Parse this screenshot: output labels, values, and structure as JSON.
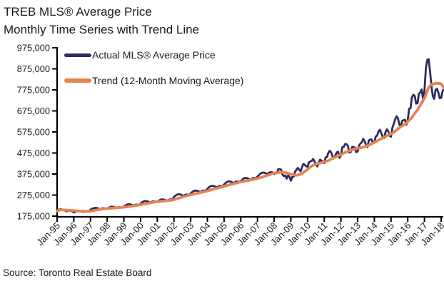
{
  "title": {
    "line1": "TREB MLS® Average Price",
    "line2": "Monthly Time Series with Trend Line"
  },
  "source": "Source: Toronto Real Estate Board",
  "legend": [
    {
      "label": "Actual MLS® Average Price",
      "color": "#2F2A61"
    },
    {
      "label": "Trend (12-Month Moving Average)",
      "color": "#E58450"
    }
  ],
  "colors": {
    "axis": "#000000",
    "text": "#1b1b1b",
    "actual_line": "#2F2A61",
    "trend_line": "#E58450"
  },
  "chart_data": {
    "type": "line",
    "title": "TREB MLS® Average Price — Monthly Time Series with Trend Line",
    "xlabel": "",
    "ylabel": "",
    "x_unit": "month",
    "x_range": [
      "Jan-1995",
      "Mar-2018"
    ],
    "x_tick_labels": [
      "Jan-95",
      "Jan-96",
      "Jan-97",
      "Jan-98",
      "Jan-99",
      "Jan-00",
      "Jan-01",
      "Jan-02",
      "Jan-03",
      "Jan-04",
      "Jan-05",
      "Jan-06",
      "Jan-07",
      "Jan-08",
      "Jan-09",
      "Jan-10",
      "Jan-11",
      "Jan-12",
      "Jan-13",
      "Jan-14",
      "Jan-15",
      "Jan-16",
      "Jan-17",
      "Jan-18"
    ],
    "y_ticks": [
      175000,
      275000,
      375000,
      475000,
      575000,
      675000,
      775000,
      875000,
      975000
    ],
    "ylim": [
      175000,
      975000
    ],
    "grid": false,
    "legend_position": "top-left inside plot",
    "series": [
      {
        "name": "Actual MLS® Average Price",
        "color": "#2F2A61",
        "values": [
          198900,
          205600,
          206600,
          207900,
          203700,
          202900,
          200000,
          197200,
          202500,
          200000,
          199100,
          197600,
          192300,
          194800,
          199100,
          200200,
          199600,
          198500,
          196800,
          194500,
          198000,
          199200,
          199000,
          198800,
          205600,
          209300,
          212100,
          213800,
          214200,
          212600,
          210000,
          207500,
          211300,
          212800,
          212000,
          210500,
          211000,
          214500,
          217600,
          219700,
          219300,
          218000,
          215600,
          213200,
          216800,
          218200,
          217500,
          216000,
          221000,
          225300,
          229000,
          231600,
          231200,
          230000,
          227200,
          224800,
          228500,
          230200,
          229600,
          228300,
          235200,
          240000,
          244000,
          246800,
          246300,
          245000,
          242200,
          239500,
          243500,
          245300,
          244600,
          243400,
          243700,
          248000,
          251800,
          254600,
          254200,
          253200,
          250300,
          248000,
          251500,
          254000,
          254500,
          255000,
          266300,
          271500,
          276000,
          279000,
          278300,
          277000,
          274000,
          271600,
          275800,
          277600,
          277200,
          276500,
          283200,
          288600,
          293400,
          296400,
          296000,
          294800,
          291800,
          289300,
          294000,
          296200,
          296000,
          295700,
          305000,
          310800,
          316000,
          319200,
          318700,
          317300,
          314000,
          311300,
          316200,
          318500,
          318200,
          317600,
          325200,
          331200,
          336800,
          340100,
          339700,
          338200,
          334700,
          331800,
          337000,
          339500,
          339200,
          338500,
          340800,
          347200,
          353000,
          356500,
          356000,
          354400,
          350700,
          347700,
          353200,
          355800,
          355500,
          354800,
          363000,
          369700,
          376000,
          379800,
          382000,
          381200,
          377800,
          374600,
          380200,
          383200,
          383800,
          382800,
          374400,
          382000,
          380300,
          398700,
          398100,
          395900,
          371400,
          364900,
          368500,
          353000,
          368600,
          361400,
          343600,
          361300,
          362100,
          385600,
          395600,
          404000,
          395400,
          387900,
          406900,
          423600,
          418500,
          411900,
          409100,
          431500,
          434700,
          437600,
          446600,
          435000,
          420500,
          411000,
          427300,
          443700,
          438000,
          434000,
          427000,
          454400,
          456100,
          477400,
          485500,
          476400,
          459100,
          451700,
          464400,
          478100,
          480400,
          451400,
          463500,
          502500,
          504100,
          517600,
          516800,
          508600,
          476900,
          479100,
          503700,
          503500,
          500500,
          478700,
          482600,
          510600,
          519900,
          526300,
          542200,
          531400,
          513200,
          503100,
          533800,
          539100,
          538900,
          520400,
          526500,
          553200,
          557700,
          577900,
          585200,
          569000,
          550700,
          546300,
          573700,
          587500,
          577900,
          556600,
          552600,
          596200,
          613900,
          635900,
          649600,
          639200,
          609200,
          602600,
          627400,
          630900,
          632700,
          609100,
          631100,
          685300,
          688000,
          739100,
          751900,
          746500,
          709800,
          711000,
          755800,
          763000,
          776700,
          730500,
          770700,
          876000,
          916600,
          920800,
          863900,
          793900,
          746200,
          732300,
          775500,
          780100,
          761800,
          735000,
          736800,
          767800,
          784600
        ]
      },
      {
        "name": "Trend (12-Month Moving Average)",
        "color": "#E58450",
        "derived": "12-month trailing moving average of the actual series (computed from the values above)"
      }
    ]
  }
}
